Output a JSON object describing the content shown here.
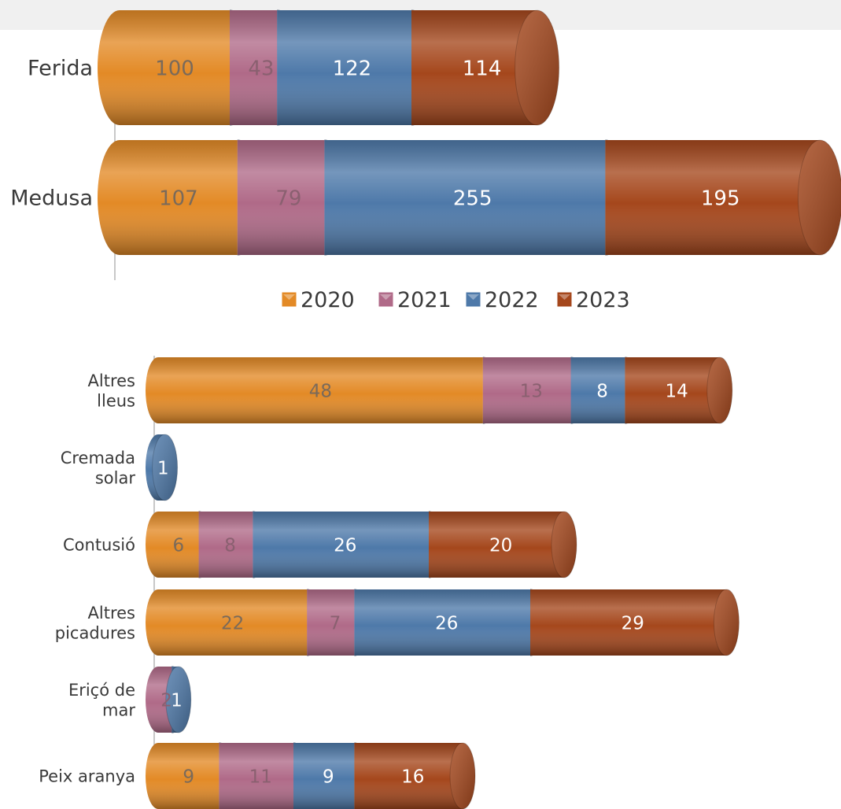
{
  "legend": [
    "2020",
    "2021",
    "2022",
    "2023"
  ],
  "colors": {
    "2020": "#e38a26",
    "2021": "#b06a88",
    "2022": "#4e79a9",
    "2023": "#a5471c"
  },
  "label_colors": {
    "2020": "#7a6a5a",
    "2021": "#8a6070",
    "2022": "#ffffff",
    "2023": "#ffffff"
  },
  "chart_data": [
    {
      "type": "bar",
      "orientation": "horizontal",
      "stacked": true,
      "style": "3d-cylinder",
      "categories": [
        "Ferida",
        "Medusa"
      ],
      "series": [
        {
          "name": "2020",
          "values": [
            100,
            107
          ]
        },
        {
          "name": "2021",
          "values": [
            43,
            79
          ]
        },
        {
          "name": "2022",
          "values": [
            122,
            255
          ]
        },
        {
          "name": "2023",
          "values": [
            114,
            195
          ]
        }
      ],
      "legend_position": "bottom"
    },
    {
      "type": "bar",
      "orientation": "horizontal",
      "stacked": true,
      "style": "3d-cylinder",
      "categories": [
        "Altres lleus",
        "Cremada solar",
        "Contusió",
        "Altres picadures",
        "Eriçó de mar",
        "Peix aranya"
      ],
      "series": [
        {
          "name": "2020",
          "values": [
            48,
            0,
            6,
            22,
            0,
            9
          ]
        },
        {
          "name": "2021",
          "values": [
            13,
            0,
            8,
            7,
            2,
            11
          ]
        },
        {
          "name": "2022",
          "values": [
            8,
            1,
            26,
            26,
            1,
            9
          ]
        },
        {
          "name": "2023",
          "values": [
            14,
            0,
            20,
            29,
            0,
            16
          ]
        }
      ]
    }
  ]
}
